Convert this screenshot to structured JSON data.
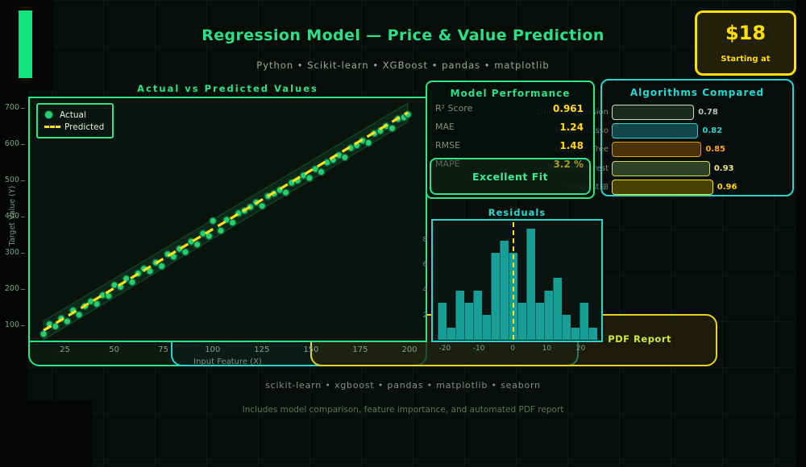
{
  "colors": {
    "green_accent": "#2ee68a",
    "cyan_accent": "#29d8d2",
    "yellow_accent": "#ffe11a",
    "gold_value": "#ffd91e",
    "hist_bar": "#169e97",
    "dot_fill": "#27cf72",
    "background": "#070d09"
  },
  "header": {
    "title": "Regression Model — Price & Value Prediction",
    "subtitle": "Python • Scikit-learn • XGBoost • pandas • matplotlib"
  },
  "price_badge": {
    "amount": "$18",
    "caption": "Starting at"
  },
  "performance": {
    "title": "Model Performance",
    "metrics": [
      {
        "label": "R² Score",
        "value": "0.961"
      },
      {
        "label": "MAE",
        "value": "1.24"
      },
      {
        "label": "RMSE",
        "value": "1.48"
      },
      {
        "label": "MAPE",
        "value": "3.2 %"
      }
    ],
    "badge_label": "Excellent Fit"
  },
  "pdf_report_label": "PDF Report",
  "footer": {
    "line1": "scikit-learn • xgboost • pandas • matplotlib • seaborn",
    "line2": "Includes model comparison, feature importance, and automated PDF report"
  },
  "chart_data": [
    {
      "type": "scatter",
      "title": "Actual vs Predicted Values",
      "xlabel": "Input Feature (X)",
      "ylabel": "Target Value (Y)",
      "legend": [
        "Actual",
        "Predicted"
      ],
      "xlim": [
        8,
        209
      ],
      "ylim": [
        56,
        724
      ],
      "xticks": [
        25,
        50,
        75,
        100,
        125,
        150,
        175,
        200
      ],
      "yticks": [
        100,
        200,
        300,
        400,
        500,
        600,
        700
      ],
      "predicted_line": {
        "x": [
          15,
          200
        ],
        "y": [
          84,
          685
        ]
      },
      "band_halfwidth": 26,
      "points": [
        [
          15,
          74
        ],
        [
          18,
          101
        ],
        [
          21,
          95
        ],
        [
          24,
          117
        ],
        [
          27,
          109
        ],
        [
          30,
          139
        ],
        [
          33,
          127
        ],
        [
          36,
          151
        ],
        [
          39,
          164
        ],
        [
          42,
          157
        ],
        [
          45,
          181
        ],
        [
          48,
          179
        ],
        [
          51,
          209
        ],
        [
          54,
          204
        ],
        [
          57,
          227
        ],
        [
          60,
          217
        ],
        [
          63,
          241
        ],
        [
          66,
          254
        ],
        [
          69,
          247
        ],
        [
          72,
          271
        ],
        [
          75,
          261
        ],
        [
          78,
          294
        ],
        [
          81,
          287
        ],
        [
          84,
          309
        ],
        [
          87,
          300
        ],
        [
          90,
          329
        ],
        [
          93,
          321
        ],
        [
          96,
          351
        ],
        [
          99,
          344
        ],
        [
          101,
          386
        ],
        [
          105,
          359
        ],
        [
          108,
          389
        ],
        [
          111,
          381
        ],
        [
          114,
          407
        ],
        [
          117,
          414
        ],
        [
          120,
          424
        ],
        [
          123,
          437
        ],
        [
          126,
          427
        ],
        [
          129,
          454
        ],
        [
          132,
          461
        ],
        [
          135,
          471
        ],
        [
          138,
          464
        ],
        [
          141,
          491
        ],
        [
          144,
          497
        ],
        [
          147,
          511
        ],
        [
          150,
          504
        ],
        [
          153,
          529
        ],
        [
          156,
          521
        ],
        [
          159,
          547
        ],
        [
          162,
          554
        ],
        [
          165,
          567
        ],
        [
          168,
          561
        ],
        [
          171,
          587
        ],
        [
          174,
          594
        ],
        [
          177,
          607
        ],
        [
          180,
          601
        ],
        [
          183,
          627
        ],
        [
          186,
          634
        ],
        [
          189,
          647
        ],
        [
          192,
          641
        ],
        [
          195,
          667
        ],
        [
          198,
          671
        ],
        [
          200,
          679
        ]
      ]
    },
    {
      "type": "histogram",
      "title": "Residuals",
      "values": [
        3,
        1,
        4,
        3,
        4,
        2,
        7,
        8,
        7,
        3,
        9,
        3,
        4,
        5,
        2,
        1,
        3,
        1
      ],
      "bin_start": -23,
      "bin_width": 2.7,
      "xlim": [
        -24,
        26.5
      ],
      "ylim": [
        0,
        9.5
      ],
      "xticks": [
        -20,
        -10,
        0,
        10,
        20
      ],
      "yticks": [
        2,
        4,
        6,
        8
      ],
      "zero_line": 0
    },
    {
      "type": "bar",
      "title": "Algorithms Compared",
      "xlim": [
        0,
        1.0
      ],
      "items": [
        {
          "label": "Linear Regression",
          "value": 0.78,
          "value_text": "0.78",
          "fill": "#1b2a21",
          "border": "#c8dcc9",
          "text": "#b9c6bb"
        },
        {
          "label": "Ridge / Lasso",
          "value": 0.82,
          "value_text": "0.82",
          "fill": "#114749",
          "border": "#2bd4d0",
          "text": "#2bd4d0"
        },
        {
          "label": "Decision Tree",
          "value": 0.85,
          "value_text": "0.85",
          "fill": "#4a3306",
          "border": "#dc9e00",
          "text": "#ffa41e"
        },
        {
          "label": "Random Forest",
          "value": 0.93,
          "value_text": "0.93",
          "fill": "#2e4226",
          "border": "#cfdd4e",
          "text": "#f2e387"
        },
        {
          "label": "XGBoost ⊞",
          "value": 0.96,
          "value_text": "0.96",
          "fill": "#494104",
          "border": "#ffe400",
          "text": "#ffd400"
        }
      ]
    }
  ]
}
